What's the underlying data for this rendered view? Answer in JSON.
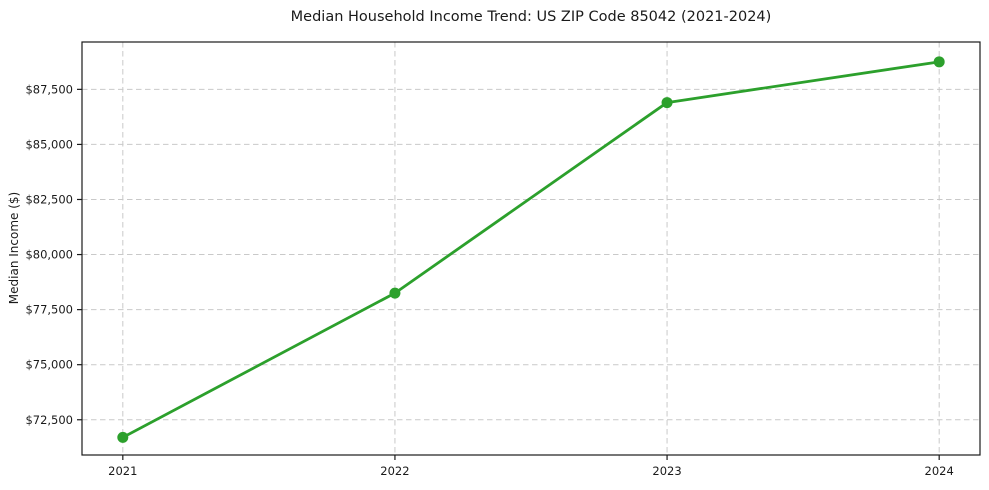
{
  "chart_data": {
    "type": "line",
    "title": "Median Household Income Trend: US ZIP Code 85042 (2021-2024)",
    "xlabel": "",
    "ylabel": "Median Income ($)",
    "x": [
      2021,
      2022,
      2023,
      2024
    ],
    "y": [
      71700,
      78250,
      86900,
      88750
    ],
    "series": [
      {
        "name": "Median Household Income",
        "values": [
          71700,
          78250,
          86900,
          88750
        ]
      }
    ],
    "xticks": [
      2021,
      2022,
      2023,
      2024
    ],
    "xtick_labels": [
      "2021",
      "2022",
      "2023",
      "2024"
    ],
    "yticks": [
      72500,
      75000,
      77500,
      80000,
      82500,
      85000,
      87500
    ],
    "ytick_labels": [
      "$72,500",
      "$75,000",
      "$77,500",
      "$80,000",
      "$82,500",
      "$85,000",
      "$87,500"
    ],
    "xlim": [
      2020.85,
      2024.15
    ],
    "ylim": [
      70900,
      89650
    ],
    "grid": true,
    "grid_style": "dashed",
    "legend": "none",
    "colors": {
      "line": "#2ca02c",
      "marker": "#2ca02c",
      "grid": "#c9c9c9",
      "spine": "#1a1a1a",
      "text": "#1a1a1a",
      "background": "#ffffff"
    },
    "marker_shape": "circle"
  }
}
